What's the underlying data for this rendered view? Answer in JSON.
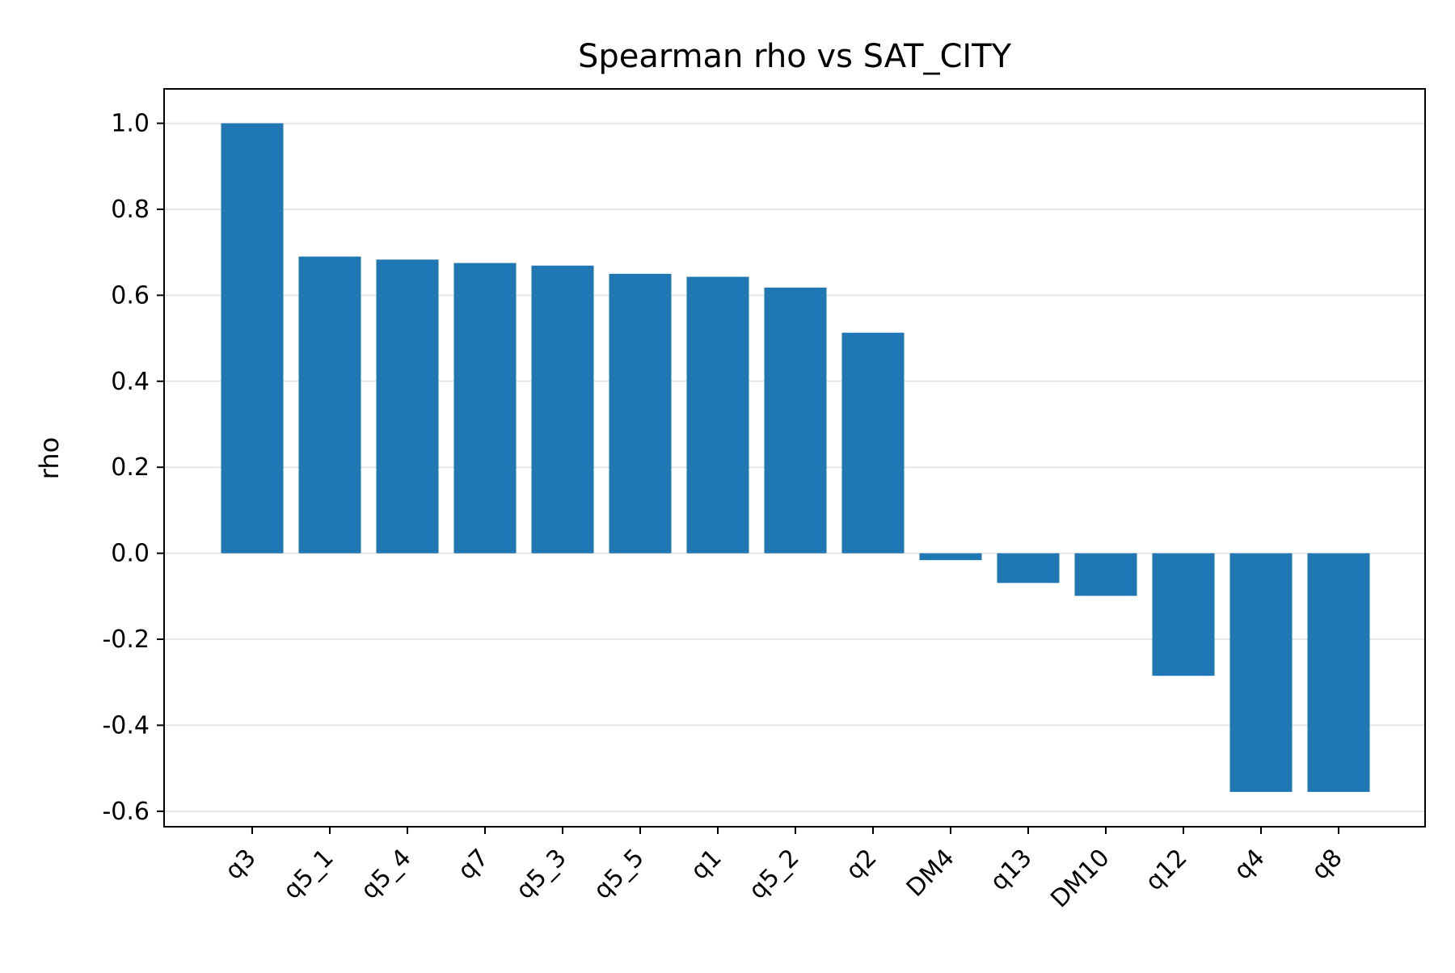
{
  "chart_data": {
    "type": "bar",
    "title": "Spearman rho vs SAT_CITY",
    "xlabel": "",
    "ylabel": "rho",
    "categories": [
      "q3",
      "q5_1",
      "q5_4",
      "q7",
      "q5_3",
      "q5_5",
      "q1",
      "q5_2",
      "q2",
      "DM4",
      "q13",
      "DM10",
      "q12",
      "q4",
      "q8"
    ],
    "values": [
      1.0,
      0.69,
      0.683,
      0.675,
      0.669,
      0.65,
      0.643,
      0.618,
      0.513,
      -0.016,
      -0.069,
      -0.099,
      -0.285,
      -0.555,
      -0.555
    ],
    "ylim": [
      -0.636,
      1.08
    ],
    "yticks": [
      1.0,
      0.8,
      0.6,
      0.4,
      0.2,
      0.0,
      -0.2,
      -0.4,
      -0.6
    ],
    "ytick_labels": [
      "1.0",
      "0.8",
      "0.6",
      "0.4",
      "0.2",
      "0.0",
      "-0.2",
      "-0.4",
      "-0.6"
    ],
    "grid": "horizontal",
    "bar_color": "#1f77b4",
    "grid_color": "#e6e6e6"
  }
}
